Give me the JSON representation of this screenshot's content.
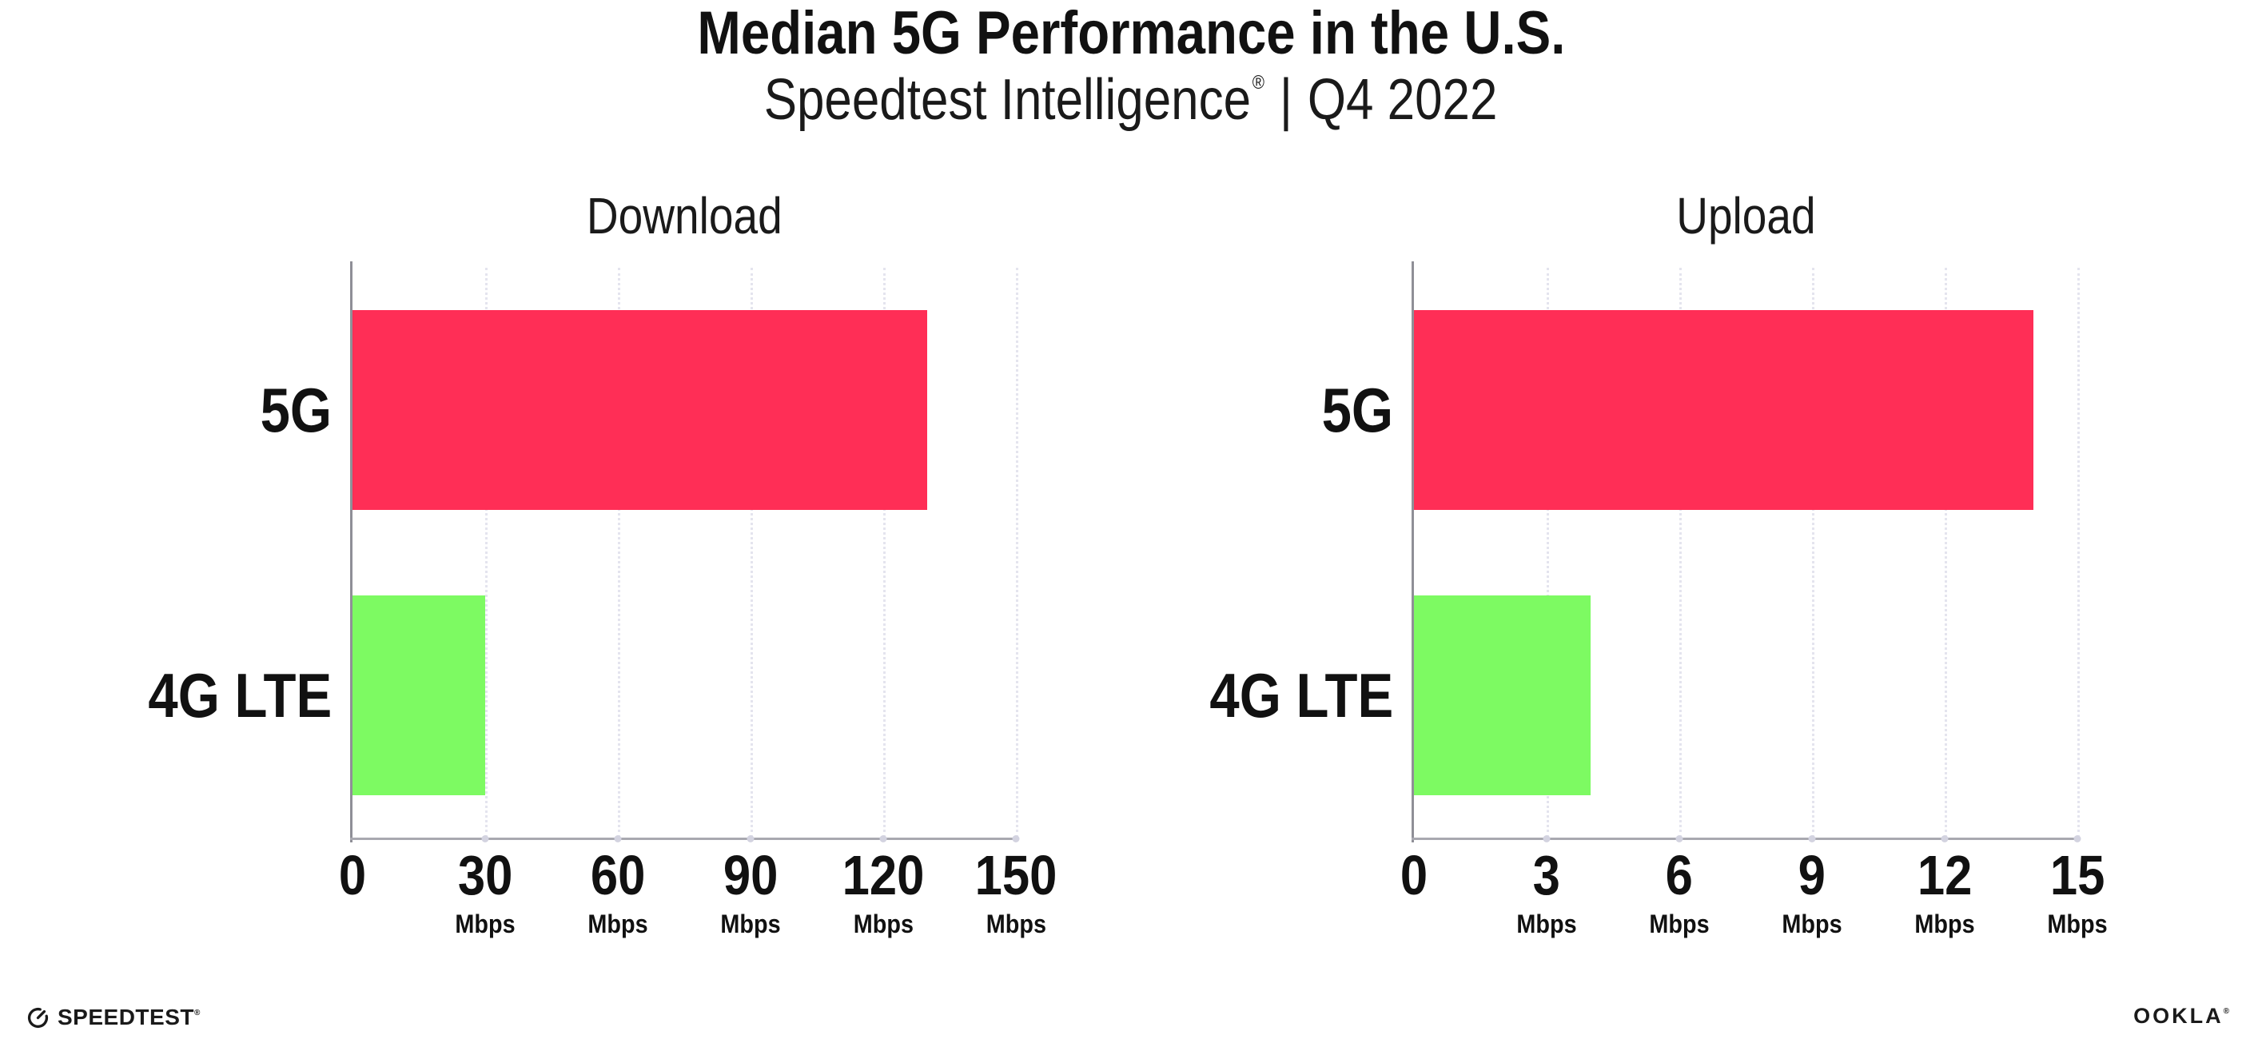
{
  "header": {
    "title": "Median 5G Performance in the U.S.",
    "subtitle": {
      "brand": "Speedtest Intelligence",
      "registered_mark": "®",
      "separator": "|",
      "period": "Q4 2022"
    }
  },
  "chart_data": [
    {
      "type": "bar",
      "orientation": "horizontal",
      "title": "Download",
      "categories": [
        "5G",
        "4G LTE"
      ],
      "values": [
        130,
        30
      ],
      "unit": "Mbps",
      "xlim": [
        0,
        150
      ],
      "xticks": [
        0,
        30,
        60,
        90,
        120,
        150
      ],
      "tick_unit": "Mbps",
      "colors": [
        "#FF2E56",
        "#7DFA62"
      ],
      "grid": "vertical-dotted",
      "legend": "none"
    },
    {
      "type": "bar",
      "orientation": "horizontal",
      "title": "Upload",
      "categories": [
        "5G",
        "4G LTE"
      ],
      "values": [
        14,
        4
      ],
      "unit": "Mbps",
      "xlim": [
        0,
        15
      ],
      "xticks": [
        0,
        3,
        6,
        9,
        12,
        15
      ],
      "tick_unit": "Mbps",
      "colors": [
        "#FF2E56",
        "#7DFA62"
      ],
      "grid": "vertical-dotted",
      "legend": "none"
    }
  ],
  "colors": {
    "bar_5g": "#FF2E56",
    "bar_4g_lte": "#7DFA62",
    "gridline": "#E4E4EE",
    "axis": "#9A9AA2",
    "text": "#111111"
  },
  "footer": {
    "speedtest": {
      "label": "SPEEDTEST",
      "mark": "®"
    },
    "ookla": {
      "label": "OOKLA",
      "mark": "®"
    }
  }
}
